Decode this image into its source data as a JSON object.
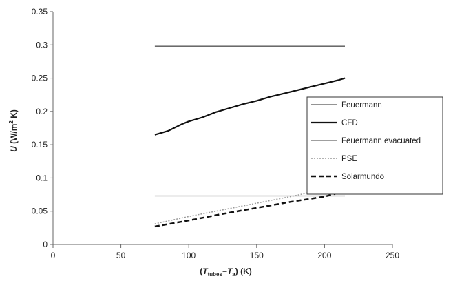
{
  "chart_data": {
    "type": "line",
    "xlabel": "(T_tubes−T_a) (K)",
    "xlabel_parts": {
      "open": "(",
      "T1": "T",
      "sub1": "tubes",
      "minus": "−",
      "T2": "T",
      "sub2": "a",
      "close": ")",
      "unit": " (K)"
    },
    "ylabel": "U (W/m2 K)",
    "ylabel_parts": {
      "symbol": "U",
      "unit_open": " (W/m",
      "unit_sup": "2",
      "unit_close": " K)"
    },
    "xlim": [
      0,
      250
    ],
    "ylim": [
      0,
      0.35
    ],
    "xticks": [
      0,
      50,
      100,
      150,
      200,
      250
    ],
    "yticks": [
      0,
      0.05,
      0.1,
      0.15,
      0.2,
      0.25,
      0.3,
      0.35
    ],
    "ytick_labels": [
      "0",
      "0.05",
      "0.1",
      "0.15",
      "0.2",
      "0.25",
      "0.3",
      "0.35"
    ],
    "grid": false,
    "legend_position": "right",
    "series": [
      {
        "name": "Feuermann",
        "color": "#555555",
        "style": "solid",
        "width": 1.3,
        "x": [
          75,
          215
        ],
        "y": [
          0.298,
          0.298
        ]
      },
      {
        "name": "CFD",
        "color": "#111111",
        "style": "solid",
        "width": 2.2,
        "x": [
          75,
          80,
          85,
          90,
          95,
          100,
          110,
          120,
          130,
          140,
          150,
          160,
          170,
          180,
          190,
          200,
          210,
          215
        ],
        "y": [
          0.165,
          0.168,
          0.171,
          0.176,
          0.181,
          0.185,
          0.191,
          0.199,
          0.205,
          0.211,
          0.216,
          0.222,
          0.227,
          0.232,
          0.237,
          0.242,
          0.247,
          0.25
        ]
      },
      {
        "name": "Feuermann evacuated",
        "color": "#666666",
        "style": "solid",
        "width": 1.3,
        "x": [
          75,
          215
        ],
        "y": [
          0.073,
          0.073
        ]
      },
      {
        "name": "PSE",
        "color": "#999999",
        "style": "dotted",
        "width": 1.5,
        "x": [
          75,
          100,
          125,
          150,
          175,
          200,
          215
        ],
        "y": [
          0.031,
          0.042,
          0.052,
          0.062,
          0.072,
          0.083,
          0.092
        ]
      },
      {
        "name": "Solarmundo",
        "color": "#111111",
        "style": "dashed",
        "width": 2.5,
        "x": [
          75,
          100,
          125,
          150,
          175,
          200,
          215
        ],
        "y": [
          0.027,
          0.036,
          0.046,
          0.055,
          0.064,
          0.072,
          0.08
        ]
      }
    ]
  }
}
